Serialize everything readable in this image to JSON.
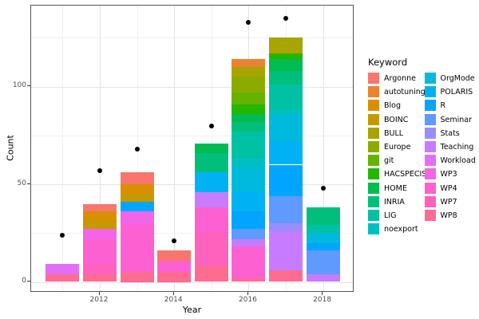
{
  "chart_data": {
    "type": "bar",
    "stacked": true,
    "xlabel": "Year",
    "ylabel": "Count",
    "legend_title": "Keyword",
    "legend_position": "right",
    "grid": true,
    "xlim": [
      2010.15,
      2018.85
    ],
    "ylim": [
      -7,
      143
    ],
    "y_ticks": [
      0,
      50,
      100
    ],
    "y_minor": [
      25,
      75,
      125
    ],
    "x_ticks": [
      2012,
      2014,
      2016,
      2018
    ],
    "x_minor": [
      2011,
      2013,
      2015,
      2017
    ],
    "keywords": [
      {
        "name": "Argonne",
        "color": "#F8766D"
      },
      {
        "name": "autotuning",
        "color": "#EA8331"
      },
      {
        "name": "Blog",
        "color": "#D89000"
      },
      {
        "name": "BOINC",
        "color": "#C49A00"
      },
      {
        "name": "BULL",
        "color": "#A9A400"
      },
      {
        "name": "Europe",
        "color": "#8CAB00"
      },
      {
        "name": "git",
        "color": "#65B200"
      },
      {
        "name": "HACSPECIS",
        "color": "#24B700"
      },
      {
        "name": "HOME",
        "color": "#00BC51"
      },
      {
        "name": "INRIA",
        "color": "#00BF7D"
      },
      {
        "name": "LIG",
        "color": "#00C1A3"
      },
      {
        "name": "noexport",
        "color": "#00BFC4"
      },
      {
        "name": "OrgMode",
        "color": "#00BADE"
      },
      {
        "name": "POLARIS",
        "color": "#00B2F3"
      },
      {
        "name": "R",
        "color": "#00A5FF"
      },
      {
        "name": "Seminar",
        "color": "#5E9AFF"
      },
      {
        "name": "Stats",
        "color": "#9C8DFF"
      },
      {
        "name": "Teaching",
        "color": "#C77CFF"
      },
      {
        "name": "Workload",
        "color": "#E36EF6"
      },
      {
        "name": "WP3",
        "color": "#F364E6"
      },
      {
        "name": "WP4",
        "color": "#FD61D1"
      },
      {
        "name": "WP7",
        "color": "#FF62BC"
      },
      {
        "name": "WP8",
        "color": "#FF6C92"
      }
    ],
    "bars": [
      {
        "year": 2011,
        "total": 9,
        "segments": [
          {
            "keyword": "Workload",
            "value": 5
          },
          {
            "keyword": "WP8",
            "value": 4
          }
        ]
      },
      {
        "year": 2012,
        "total": 40,
        "segments": [
          {
            "keyword": "Argonne",
            "value": 4
          },
          {
            "keyword": "Blog",
            "value": 5
          },
          {
            "keyword": "BOINC",
            "value": 4
          },
          {
            "keyword": "WP3",
            "value": 5
          },
          {
            "keyword": "WP4",
            "value": 13
          },
          {
            "keyword": "WP7",
            "value": 5
          },
          {
            "keyword": "WP8",
            "value": 4
          }
        ]
      },
      {
        "year": 2013,
        "total": 56,
        "segments": [
          {
            "keyword": "Argonne",
            "value": 6
          },
          {
            "keyword": "Blog",
            "value": 5
          },
          {
            "keyword": "BOINC",
            "value": 4
          },
          {
            "keyword": "R",
            "value": 5
          },
          {
            "keyword": "WP3",
            "value": 7
          },
          {
            "keyword": "WP4",
            "value": 24
          },
          {
            "keyword": "WP8",
            "value": 5
          }
        ]
      },
      {
        "year": 2014,
        "total": 16,
        "segments": [
          {
            "keyword": "Argonne",
            "value": 5
          },
          {
            "keyword": "WP4",
            "value": 6
          },
          {
            "keyword": "WP8",
            "value": 5
          }
        ]
      },
      {
        "year": 2015,
        "total": 71,
        "segments": [
          {
            "keyword": "HOME",
            "value": 5
          },
          {
            "keyword": "INRIA",
            "value": 10
          },
          {
            "keyword": "POLARIS",
            "value": 10
          },
          {
            "keyword": "Teaching",
            "value": 8
          },
          {
            "keyword": "WP4",
            "value": 13
          },
          {
            "keyword": "WP7",
            "value": 17
          },
          {
            "keyword": "WP8",
            "value": 8
          }
        ]
      },
      {
        "year": 2016,
        "total": 114,
        "segments": [
          {
            "keyword": "autotuning",
            "value": 4
          },
          {
            "keyword": "BULL",
            "value": 5
          },
          {
            "keyword": "Europe",
            "value": 8
          },
          {
            "keyword": "git",
            "value": 6
          },
          {
            "keyword": "HACSPECIS",
            "value": 5
          },
          {
            "keyword": "HOME",
            "value": 4
          },
          {
            "keyword": "INRIA",
            "value": 5
          },
          {
            "keyword": "LIG",
            "value": 14
          },
          {
            "keyword": "noexport",
            "value": 5
          },
          {
            "keyword": "OrgMode",
            "value": 12
          },
          {
            "keyword": "POLARIS",
            "value": 10
          },
          {
            "keyword": "R",
            "value": 9
          },
          {
            "keyword": "Seminar",
            "value": 5
          },
          {
            "keyword": "Teaching",
            "value": 4
          },
          {
            "keyword": "WP4",
            "value": 16
          },
          {
            "keyword": "WP8",
            "value": 2
          }
        ]
      },
      {
        "year": 2017,
        "total": 125,
        "segments": [
          {
            "keyword": "BULL",
            "value": 8
          },
          {
            "keyword": "HACSPECIS",
            "value": 3
          },
          {
            "keyword": "HOME",
            "value": 6
          },
          {
            "keyword": "INRIA",
            "value": 7
          },
          {
            "keyword": "LIG",
            "value": 13
          },
          {
            "keyword": "noexport",
            "value": 3
          },
          {
            "keyword": "OrgMode",
            "value": 13
          },
          {
            "keyword": "POLARIS",
            "value": 12
          },
          {
            "keyword": "R",
            "value": 16
          },
          {
            "keyword": "Seminar",
            "value": 14
          },
          {
            "keyword": "Stats",
            "value": 4
          },
          {
            "keyword": "Teaching",
            "value": 20
          },
          {
            "keyword": "WP8",
            "value": 6
          }
        ]
      },
      {
        "year": 2018,
        "total": 38,
        "segments": [
          {
            "keyword": "INRIA",
            "value": 9
          },
          {
            "keyword": "LIG",
            "value": 4
          },
          {
            "keyword": "OrgMode",
            "value": 5
          },
          {
            "keyword": "R",
            "value": 4
          },
          {
            "keyword": "Seminar",
            "value": 12
          },
          {
            "keyword": "Teaching",
            "value": 4
          }
        ]
      }
    ],
    "points": [
      {
        "year": 2011,
        "count": 24
      },
      {
        "year": 2012,
        "count": 57
      },
      {
        "year": 2013,
        "count": 68
      },
      {
        "year": 2014,
        "count": 21
      },
      {
        "year": 2015,
        "count": 80
      },
      {
        "year": 2016,
        "count": 133
      },
      {
        "year": 2017,
        "count": 135
      },
      {
        "year": 2018,
        "count": 48
      }
    ]
  }
}
